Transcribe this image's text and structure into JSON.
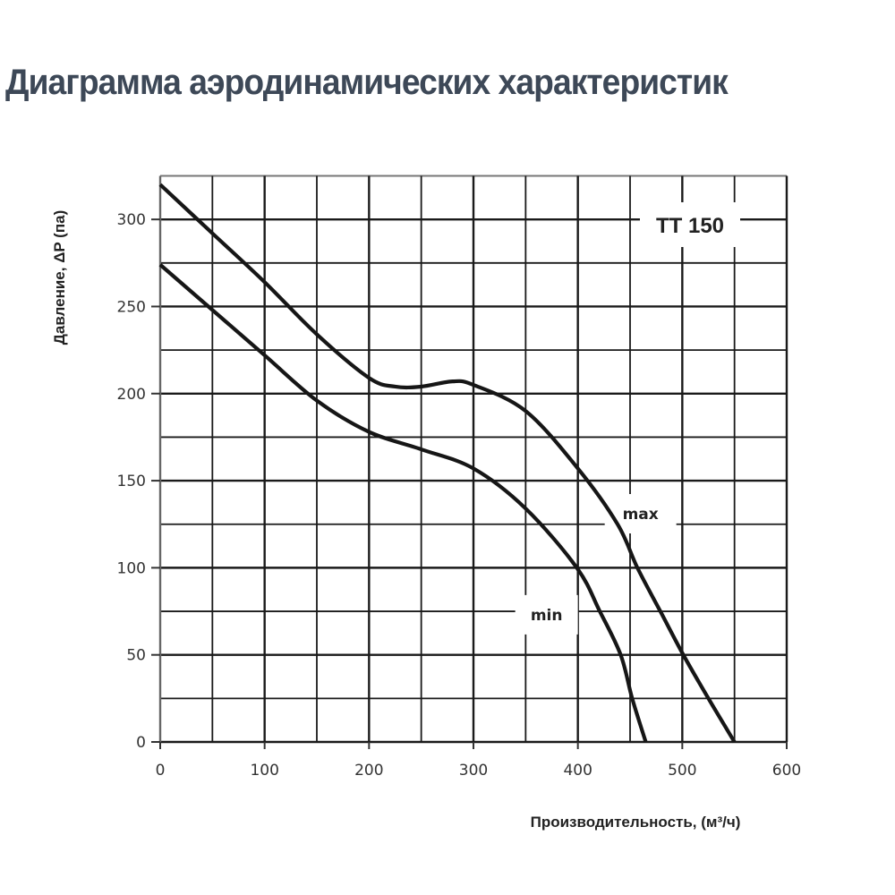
{
  "page": {
    "title": "Диаграмма аэродинамических характеристик"
  },
  "chart_data": {
    "type": "line",
    "title": "Диаграмма аэродинамических характеристик",
    "model": "TT 150",
    "xlabel": "Производительность, (м³/ч)",
    "ylabel": "Давление, ΔP (па)",
    "xlim": [
      0,
      600
    ],
    "ylim": [
      0,
      325
    ],
    "x_ticks": [
      0,
      100,
      200,
      300,
      400,
      500,
      600
    ],
    "y_ticks": [
      0,
      50,
      100,
      150,
      200,
      250,
      300
    ],
    "grid": {
      "on": true,
      "x_step": 50,
      "y_step": 25
    },
    "legend": "inline labels",
    "series": [
      {
        "name": "max",
        "points": [
          [
            0,
            320
          ],
          [
            50,
            292
          ],
          [
            100,
            264
          ],
          [
            150,
            234
          ],
          [
            200,
            209
          ],
          [
            225,
            204
          ],
          [
            250,
            204
          ],
          [
            280,
            207
          ],
          [
            300,
            205
          ],
          [
            350,
            190
          ],
          [
            400,
            157
          ],
          [
            438,
            125
          ],
          [
            457,
            100
          ],
          [
            479,
            75
          ],
          [
            501,
            50
          ],
          [
            525,
            25
          ],
          [
            550,
            0
          ]
        ],
        "label_at": [
          460,
          130
        ]
      },
      {
        "name": "min",
        "points": [
          [
            0,
            274
          ],
          [
            50,
            248
          ],
          [
            100,
            222
          ],
          [
            150,
            196
          ],
          [
            200,
            178
          ],
          [
            250,
            168
          ],
          [
            300,
            157
          ],
          [
            350,
            134
          ],
          [
            399,
            100
          ],
          [
            421,
            75
          ],
          [
            441,
            50
          ],
          [
            452,
            25
          ],
          [
            465,
            0
          ]
        ],
        "label_at": [
          370,
          72
        ]
      }
    ]
  }
}
